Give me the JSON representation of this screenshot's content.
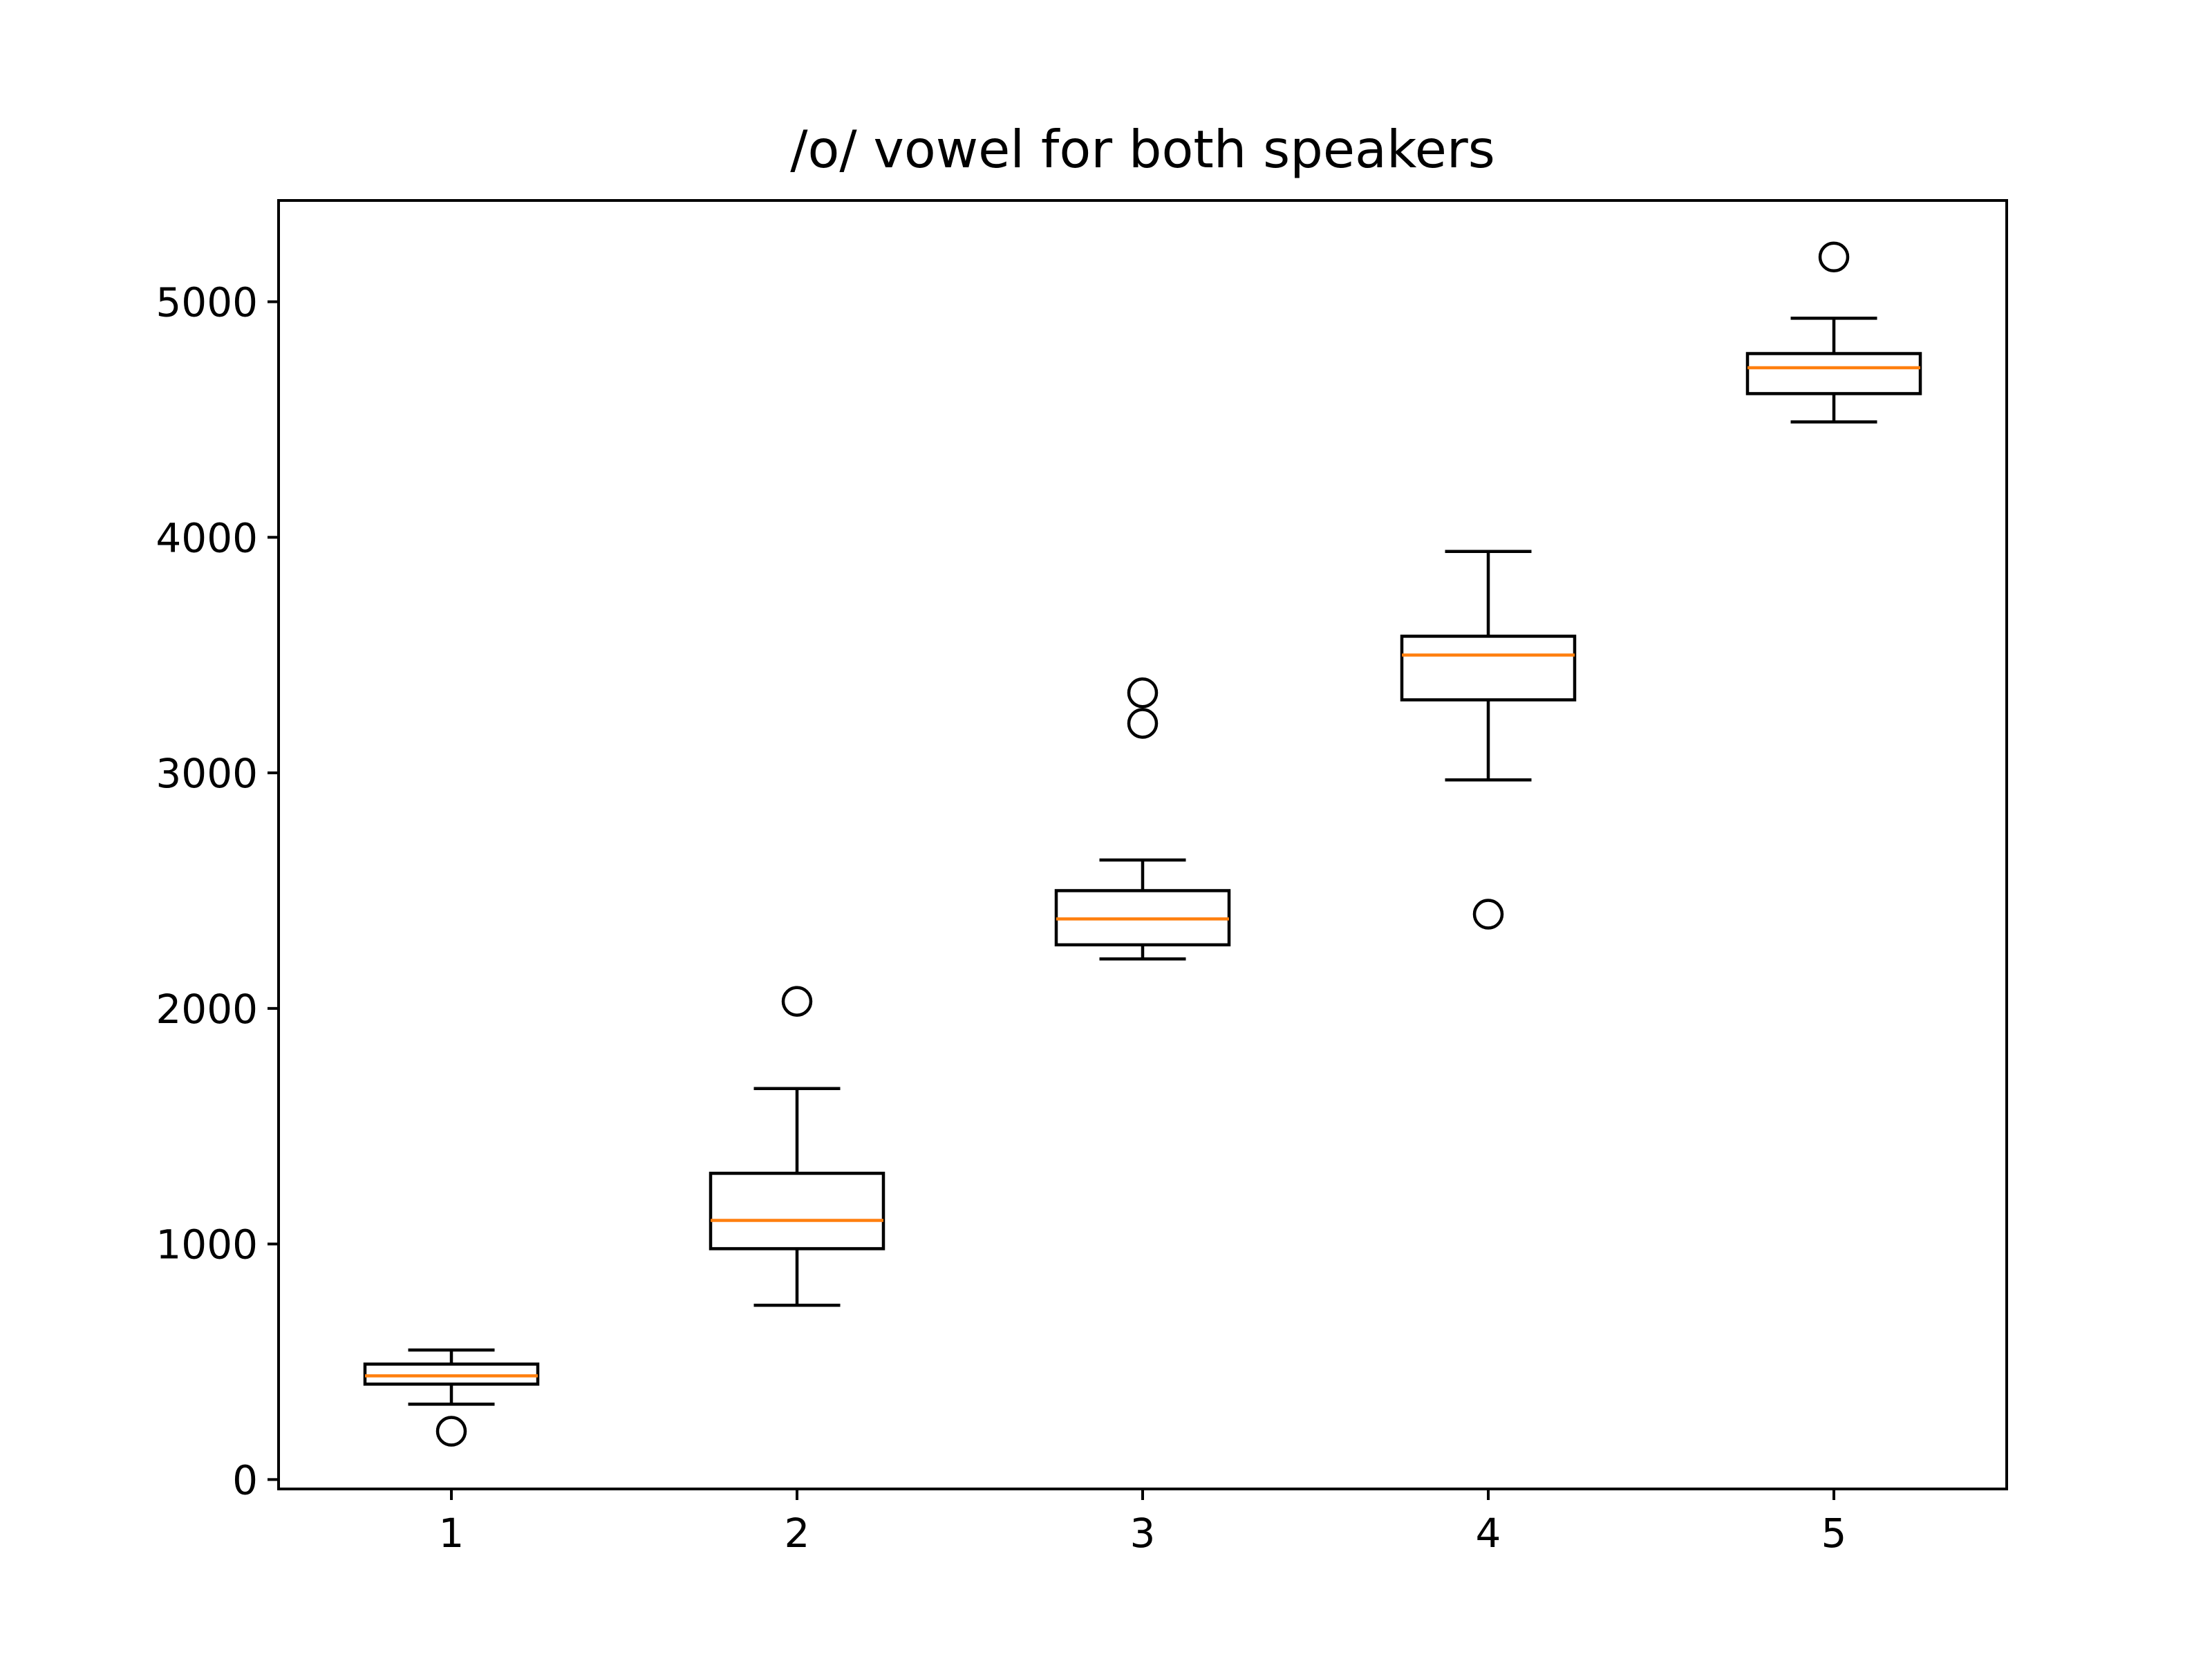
{
  "chart_data": {
    "type": "box",
    "title": "/o/ vowel for both speakers",
    "xlabel": "",
    "ylabel": "",
    "categories": [
      "1",
      "2",
      "3",
      "4",
      "5"
    ],
    "ylim": [
      -40,
      5430
    ],
    "xlim": [
      0.5,
      5.5
    ],
    "y_ticks": [
      0,
      1000,
      2000,
      3000,
      4000,
      5000
    ],
    "y_tick_labels": [
      "0",
      "1000",
      "2000",
      "3000",
      "4000",
      "5000"
    ],
    "grid": false,
    "legend": "none",
    "colors": {
      "box": "#000000",
      "median": "#ff7f0e",
      "background": "#ffffff"
    },
    "boxes": [
      {
        "category": "1",
        "whisker_low": 320,
        "q1": 405,
        "median": 440,
        "q3": 490,
        "whisker_high": 550,
        "fliers": [
          205
        ]
      },
      {
        "category": "2",
        "whisker_low": 740,
        "q1": 980,
        "median": 1100,
        "q3": 1300,
        "whisker_high": 1660,
        "fliers": [
          2030
        ]
      },
      {
        "category": "3",
        "whisker_low": 2210,
        "q1": 2270,
        "median": 2380,
        "q3": 2500,
        "whisker_high": 2630,
        "fliers": [
          3210,
          3340
        ]
      },
      {
        "category": "4",
        "whisker_low": 2970,
        "q1": 3310,
        "median": 3500,
        "q3": 3580,
        "whisker_high": 3940,
        "fliers": [
          2400
        ]
      },
      {
        "category": "5",
        "whisker_low": 4490,
        "q1": 4610,
        "median": 4720,
        "q3": 4780,
        "whisker_high": 4930,
        "fliers": [
          5190
        ]
      }
    ]
  }
}
